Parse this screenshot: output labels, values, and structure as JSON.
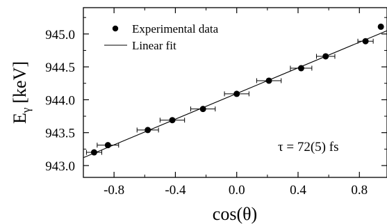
{
  "chart_data": {
    "type": "scatter",
    "xlabel": "cos(θ)",
    "ylabel_main": "E",
    "ylabel_sub": "γ",
    "ylabel_unit": "[keV]",
    "xlim": [
      -1.0,
      0.98
    ],
    "ylim": [
      942.82,
      945.4
    ],
    "x_ticks": [
      -0.8,
      -0.4,
      0.0,
      0.4,
      0.8
    ],
    "x_tick_labels": [
      "-0.8",
      "-0.4",
      "0.0",
      "0.4",
      "0.8"
    ],
    "x_minor_ticks": [
      -1.0,
      -0.6,
      -0.2,
      0.2,
      0.6
    ],
    "y_ticks": [
      943.0,
      943.5,
      944.0,
      944.5,
      945.0
    ],
    "y_tick_labels": [
      "943.0",
      "943.5",
      "944.0",
      "944.5",
      "945.0"
    ],
    "y_minor_ticks": [
      943.25,
      943.75,
      944.25,
      944.75,
      945.25
    ],
    "grid": false,
    "legend_position": "top-left",
    "series": [
      {
        "name": "Experimental data",
        "kind": "points",
        "x": [
          -0.93,
          -0.84,
          -0.58,
          -0.42,
          -0.22,
          0.0,
          0.21,
          0.42,
          0.58,
          0.84,
          0.94
        ],
        "y": [
          943.2,
          943.31,
          943.54,
          943.69,
          943.86,
          944.09,
          944.29,
          944.48,
          944.66,
          944.89,
          945.11
        ],
        "xerr": [
          0.05,
          0.07,
          0.07,
          0.08,
          0.08,
          0.08,
          0.08,
          0.07,
          0.06,
          0.05,
          0.0
        ]
      },
      {
        "name": "Linear fit",
        "kind": "line",
        "x": [
          -1.0,
          0.98
        ],
        "y": [
          943.12,
          945.05
        ]
      }
    ],
    "annotation": "τ = 72(5) fs",
    "colors": {
      "ink": "#000000",
      "background": "#ffffff"
    }
  }
}
